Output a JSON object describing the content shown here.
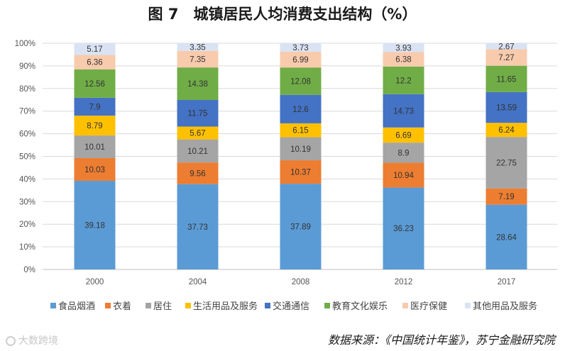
{
  "title": "图 7　城镇居民人均消费支出结构（%）",
  "source": "数据来源：《中国统计年鉴》，苏宁金融研究院",
  "watermark": "大数跨境",
  "colors": {
    "food": "#5b9bd5",
    "clothing": "#ed7d31",
    "housing": "#a5a5a5",
    "daily": "#ffc000",
    "transport": "#4472c4",
    "education": "#70ad47",
    "medical": "#f8cbad",
    "other": "#dae3f3"
  },
  "chart_data": {
    "type": "bar",
    "stacked": true,
    "percent": true,
    "title": "图 7　城镇居民人均消费支出结构（%）",
    "categories": [
      "2000",
      "2004",
      "2008",
      "2012",
      "2017"
    ],
    "ylim": [
      0,
      100
    ],
    "yticks": [
      "0%",
      "10%",
      "20%",
      "30%",
      "40%",
      "50%",
      "60%",
      "70%",
      "80%",
      "90%",
      "100%"
    ],
    "legend_position": "bottom",
    "series": [
      {
        "key": "food",
        "name": "食品烟酒",
        "values": [
          39.18,
          37.73,
          37.89,
          36.23,
          28.64
        ],
        "labels": [
          "39.18",
          "37.73",
          "37.89",
          "36.23",
          "28.64"
        ]
      },
      {
        "key": "clothing",
        "name": "衣着",
        "values": [
          10.03,
          9.56,
          10.37,
          10.94,
          7.19
        ],
        "labels": [
          "10.03",
          "9.56",
          "10.37",
          "10.94",
          "7.19"
        ]
      },
      {
        "key": "housing",
        "name": "居住",
        "values": [
          10.01,
          10.21,
          10.19,
          8.9,
          22.75
        ],
        "labels": [
          "10.01",
          "10.21",
          "10.19",
          "8.9",
          "22.75"
        ]
      },
      {
        "key": "daily",
        "name": "生活用品及服务",
        "values": [
          8.79,
          5.67,
          6.15,
          6.69,
          6.24
        ],
        "labels": [
          "8.79",
          "5.67",
          "6.15",
          "6.69",
          "6.24"
        ]
      },
      {
        "key": "transport",
        "name": "交通通信",
        "values": [
          7.9,
          11.75,
          12.6,
          14.73,
          13.59
        ],
        "labels": [
          "7.9",
          "11.75",
          "12.6",
          "14.73",
          "13.59"
        ]
      },
      {
        "key": "education",
        "name": "教育文化娱乐",
        "values": [
          12.56,
          14.38,
          12.08,
          12.2,
          11.65
        ],
        "labels": [
          "12.56",
          "14.38",
          "12.08",
          "12.2",
          "11.65"
        ]
      },
      {
        "key": "medical",
        "name": "医疗保健",
        "values": [
          6.36,
          7.35,
          6.99,
          6.38,
          7.27
        ],
        "labels": [
          "6.36",
          "7.35",
          "6.99",
          "6.38",
          "7.27"
        ]
      },
      {
        "key": "other",
        "name": "其他用品及服务",
        "values": [
          5.17,
          3.35,
          3.73,
          3.93,
          2.67
        ],
        "labels": [
          "5.17",
          "3.35",
          "3.73",
          "3.93",
          "2.67"
        ]
      }
    ]
  }
}
